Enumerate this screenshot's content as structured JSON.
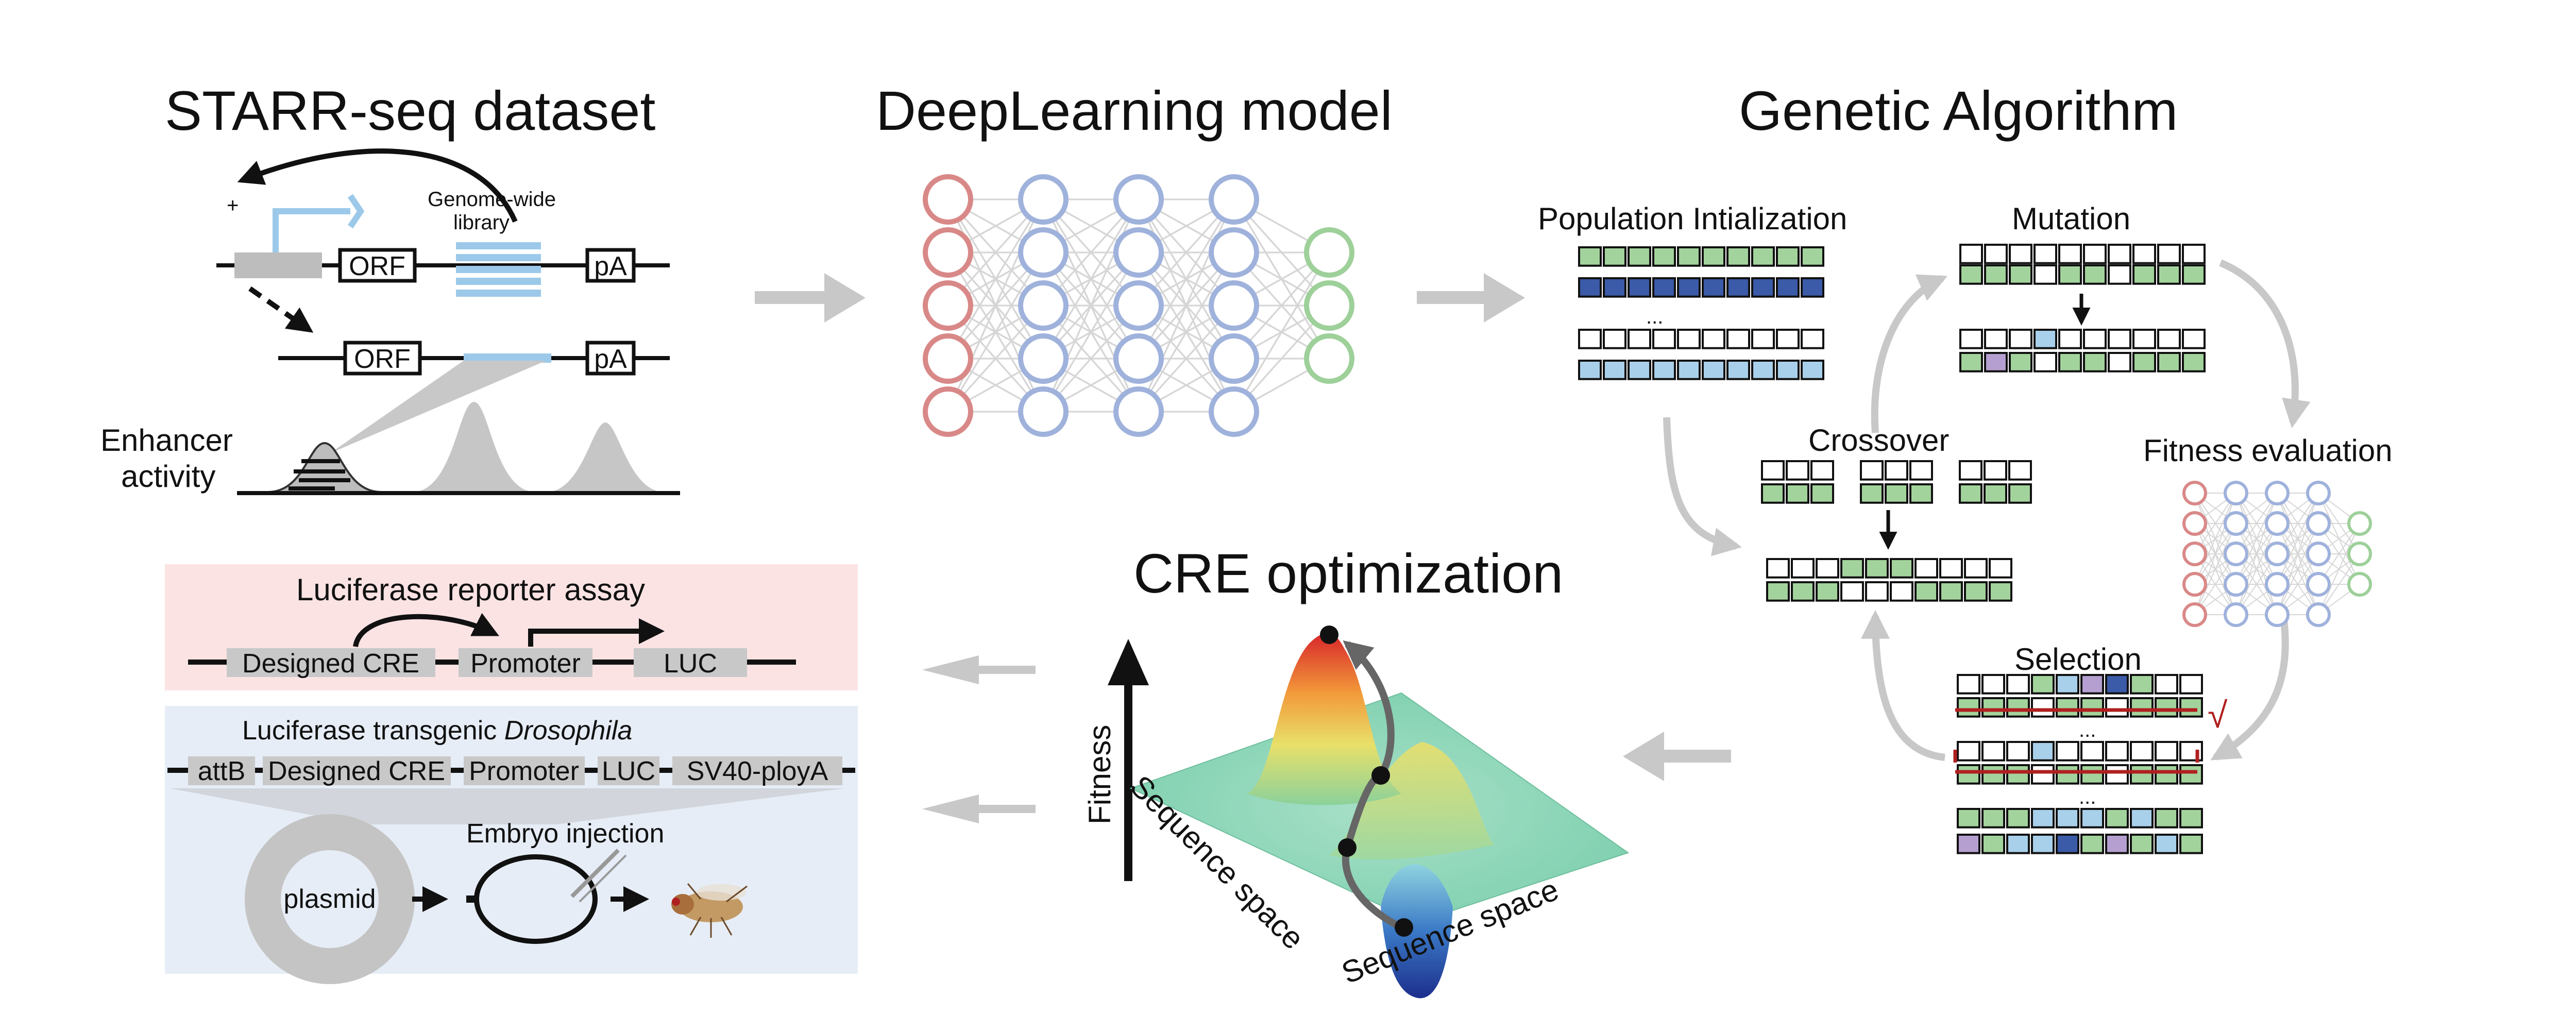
{
  "panels": {
    "starr": {
      "title": "STARR-seq dataset",
      "plus": "+",
      "library_line1": "Genome-wide",
      "library_line2": "library",
      "orf": "ORF",
      "pa": "pA",
      "enhancer_line1": "Enhancer",
      "enhancer_line2": "activity"
    },
    "deep": {
      "title": "DeepLearning model",
      "layers": [
        5,
        5,
        5,
        5,
        3
      ],
      "layer_colors": [
        "#d98888",
        "#9fb2dc",
        "#9fb2dc",
        "#9fb2dc",
        "#9ed09a"
      ]
    },
    "ga": {
      "title": "Genetic Algorithm",
      "population": "Population Intialization",
      "mutation": "Mutation",
      "crossover": "Crossover",
      "fitness": "Fitness evaluation",
      "selection": "Selection",
      "ellipsis": "...",
      "check": "√"
    },
    "cre": {
      "title": "CRE optimization",
      "fitness": "Fitness",
      "seq_space_left": "Sequence space",
      "seq_space_right": "Sequence space"
    },
    "luciferase": {
      "title": "Luciferase reporter assay",
      "cre": "Designed CRE",
      "promoter": "Promoter",
      "luc": "LUC"
    },
    "transgenic": {
      "title_prefix": "Luciferase transgenic ",
      "title_species": "Drosophila",
      "attb": "attB",
      "cre": "Designed CRE",
      "promoter": "Promoter",
      "luc": "LUC",
      "sv40": "SV40-ployA",
      "plasmid": "plasmid",
      "injection": "Embryo injection"
    }
  },
  "colors": {
    "green": "#a3d39c",
    "dark_blue": "#3b5aa8",
    "light_blue": "#a9d0ea",
    "purple": "#b59fd0",
    "red_nodes": "#d98888",
    "blue_nodes": "#9fb2dc",
    "green_nodes": "#9ed09a",
    "pink_panel": "#fbe3e4",
    "blue_panel": "#e6edf6",
    "arrow_gray": "#c8c8c8"
  }
}
